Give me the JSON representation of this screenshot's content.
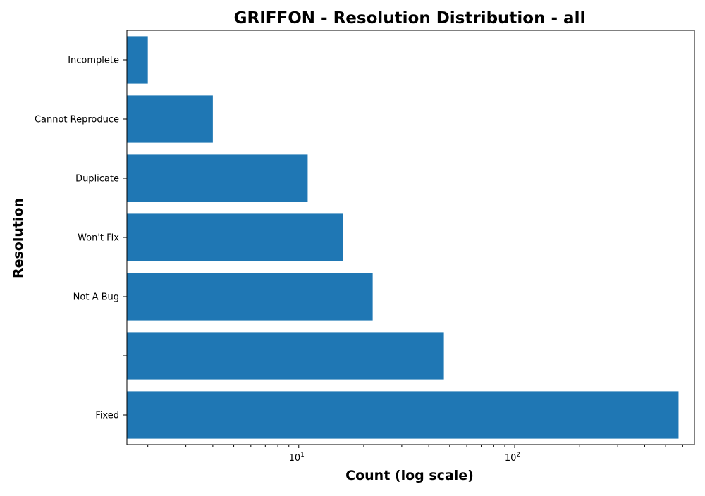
{
  "chart_data": {
    "type": "bar",
    "orientation": "horizontal",
    "title": "GRIFFON - Resolution Distribution - all",
    "xlabel": "Count (log scale)",
    "ylabel": "Resolution",
    "xscale": "log",
    "xlim": [
      1.6,
      680
    ],
    "categories": [
      "Fixed",
      "",
      "Not A Bug",
      "Won't Fix",
      "Duplicate",
      "Cannot Reproduce",
      "Incomplete"
    ],
    "values": [
      574,
      47,
      22,
      16,
      11,
      4,
      2
    ],
    "x_ticks": [
      {
        "value": 10,
        "base": "10",
        "exp": "1"
      },
      {
        "value": 100,
        "base": "10",
        "exp": "2"
      }
    ],
    "minor_ticks": [
      2,
      3,
      4,
      5,
      6,
      7,
      8,
      9,
      20,
      30,
      40,
      50,
      60,
      70,
      80,
      90,
      200,
      300,
      400,
      500,
      600
    ],
    "bar_color": "#1f77b4",
    "grid": false
  }
}
